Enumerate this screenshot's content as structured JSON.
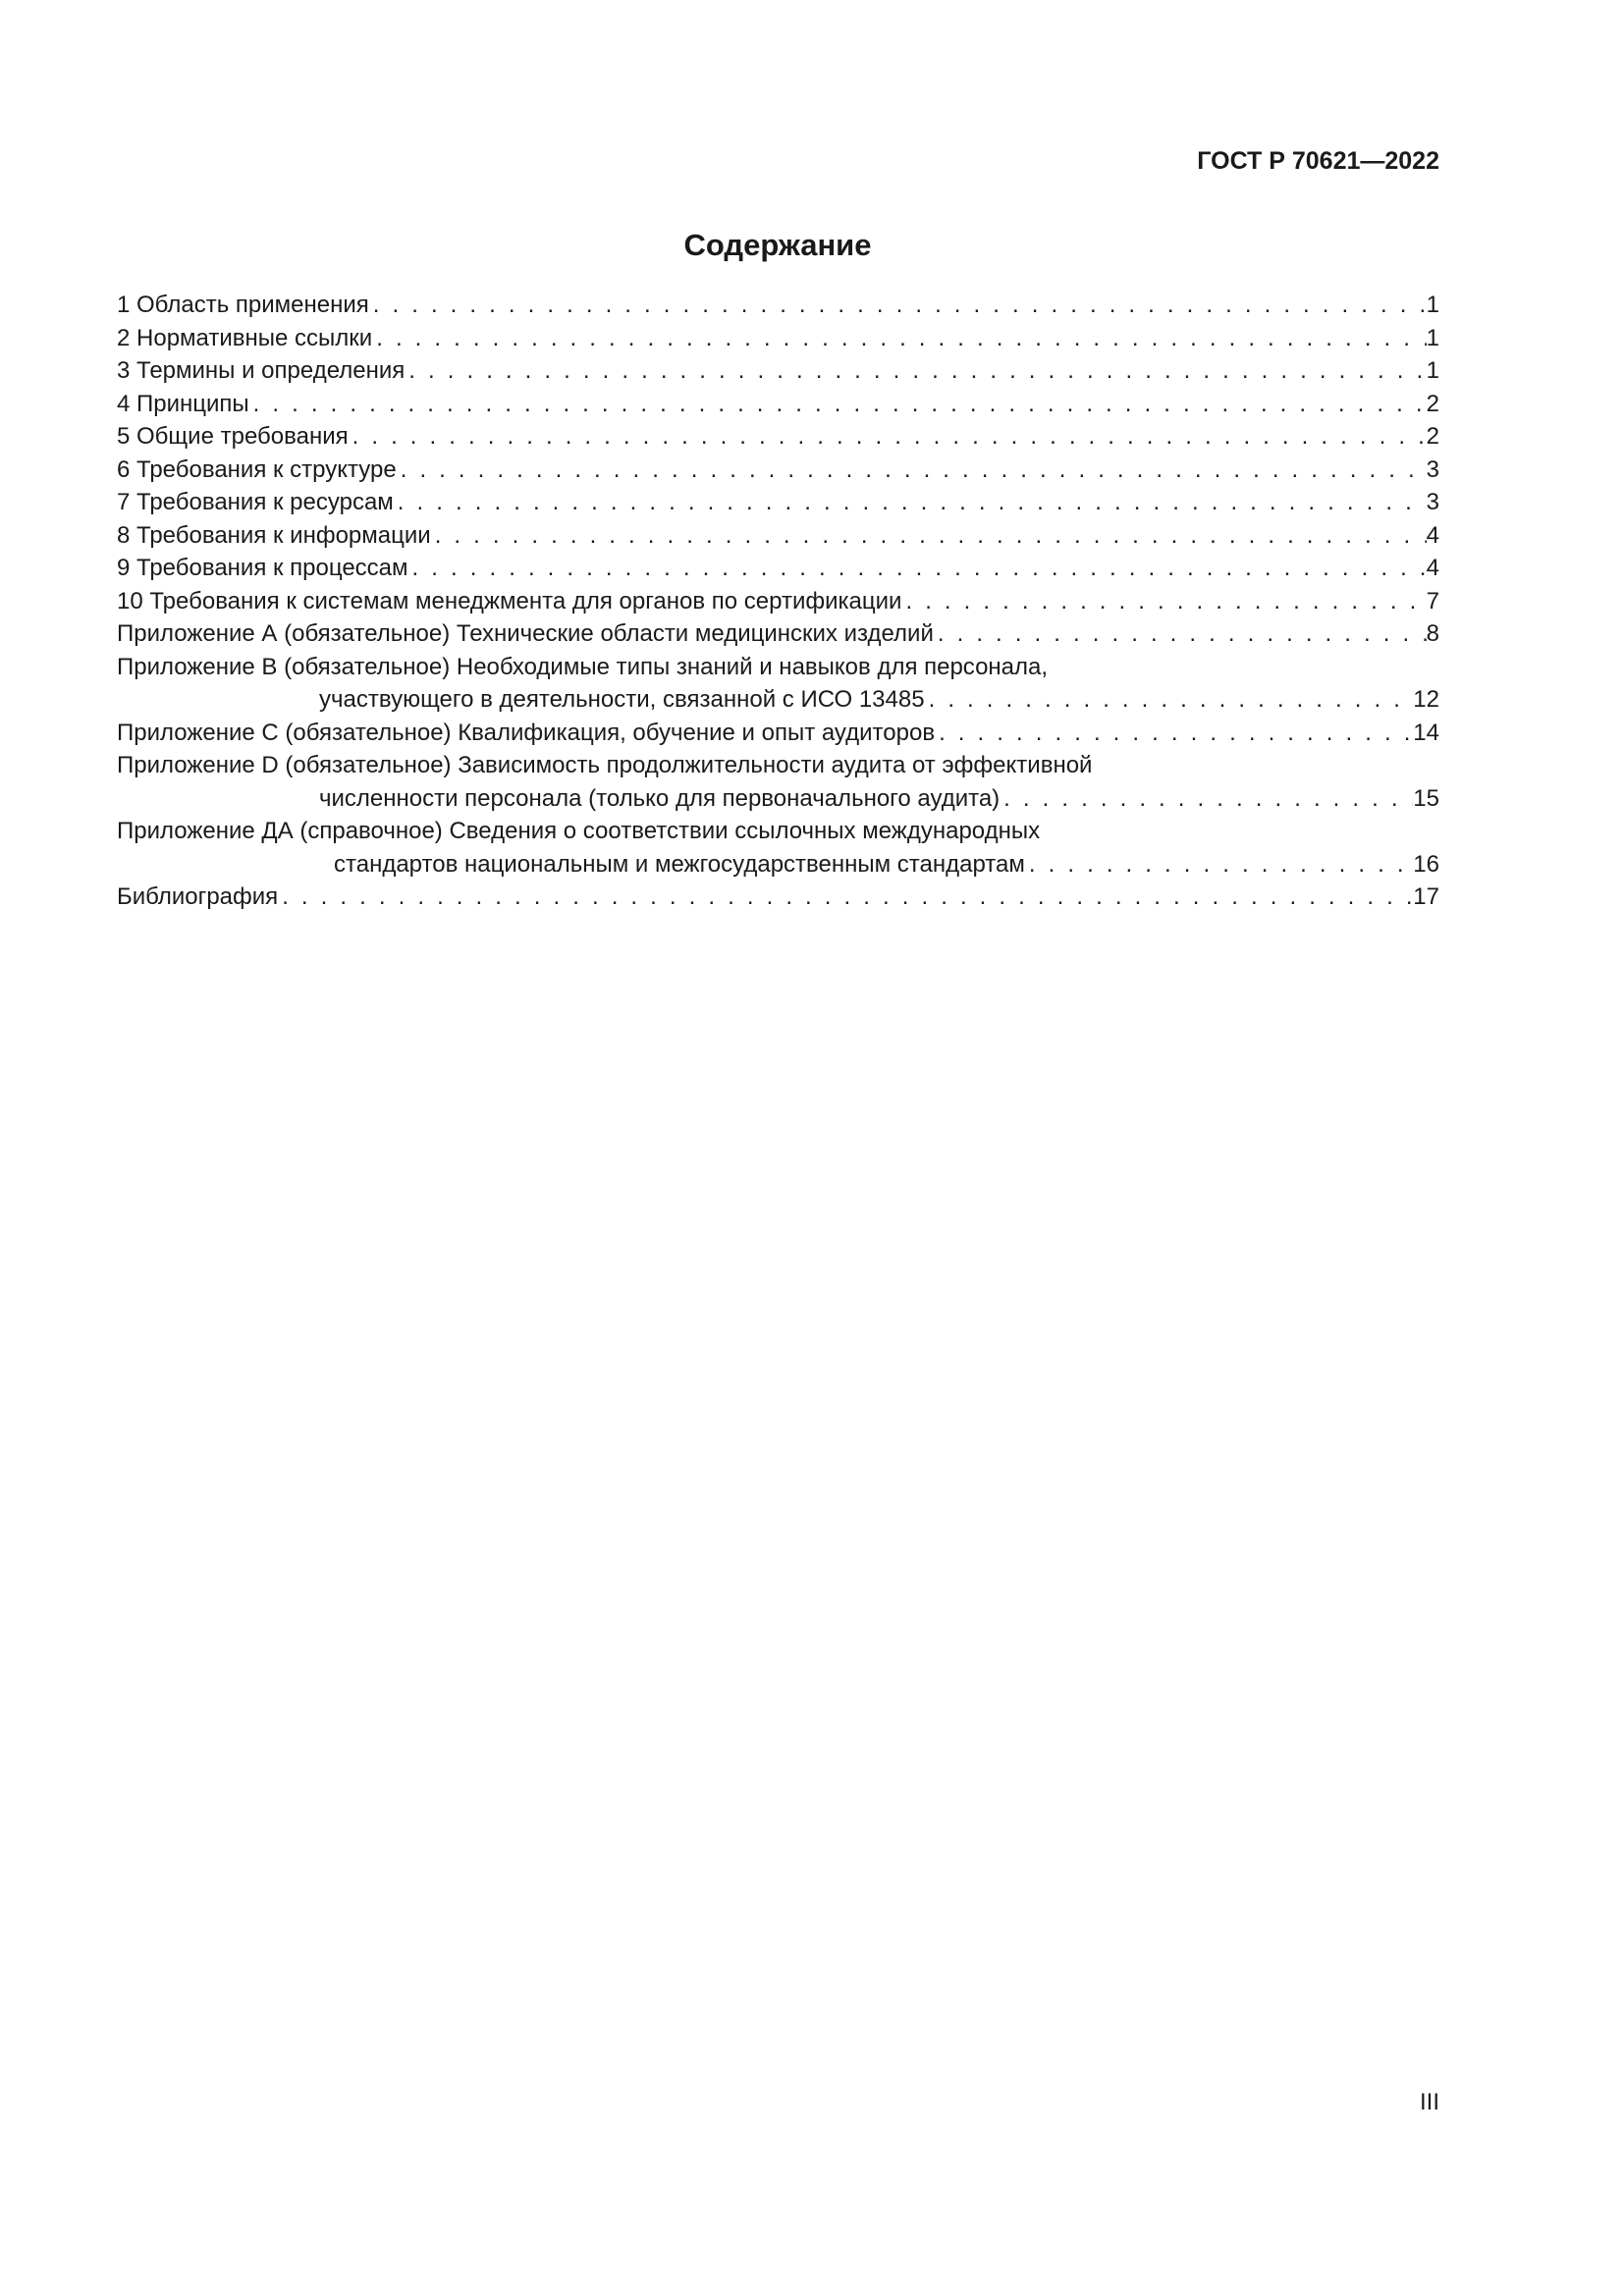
{
  "header": {
    "doc_id": "ГОСТ Р 70621—2022"
  },
  "title": "Содержание",
  "toc": [
    {
      "text": "1 Область применения",
      "page": "1"
    },
    {
      "text": "2 Нормативные ссылки",
      "page": "1"
    },
    {
      "text": "3 Термины и определения",
      "page": "1"
    },
    {
      "text": "4 Принципы",
      "page": "2"
    },
    {
      "text": "5 Общие требования",
      "page": "2"
    },
    {
      "text": "6 Требования к структуре",
      "page": "3"
    },
    {
      "text": "7 Требования к ресурсам",
      "page": "3"
    },
    {
      "text": "8 Требования к информации",
      "page": "4"
    },
    {
      "text": "9 Требования к процессам",
      "page": "4"
    },
    {
      "text": "10 Требования к системам менеджмента для органов по сертификации",
      "page": "7"
    },
    {
      "text": "Приложение А (обязательное) Технические области медицинских изделий",
      "page": "8"
    },
    {
      "text": "Приложение В (обязательное) Необходимые типы знаний и навыков для персонала,",
      "cont": "участвующего в деятельности, связанной с ИСО 13485",
      "page": "12"
    },
    {
      "text": "Приложение С (обязательное) Квалификация, обучение и опыт аудиторов",
      "page": "14"
    },
    {
      "text": "Приложение D (обязательное) Зависимость продолжительности аудита от эффективной",
      "cont": "численности персонала (только для первоначального аудита)",
      "page": "15"
    },
    {
      "text": "Приложение ДА (справочное) Сведения о соответствии ссылочных международных",
      "cont": "стандартов национальным и межгосударственным стандартам",
      "page": "16"
    },
    {
      "text": "Библиография",
      "page": "17"
    }
  ],
  "footer": {
    "page_number": "III"
  }
}
